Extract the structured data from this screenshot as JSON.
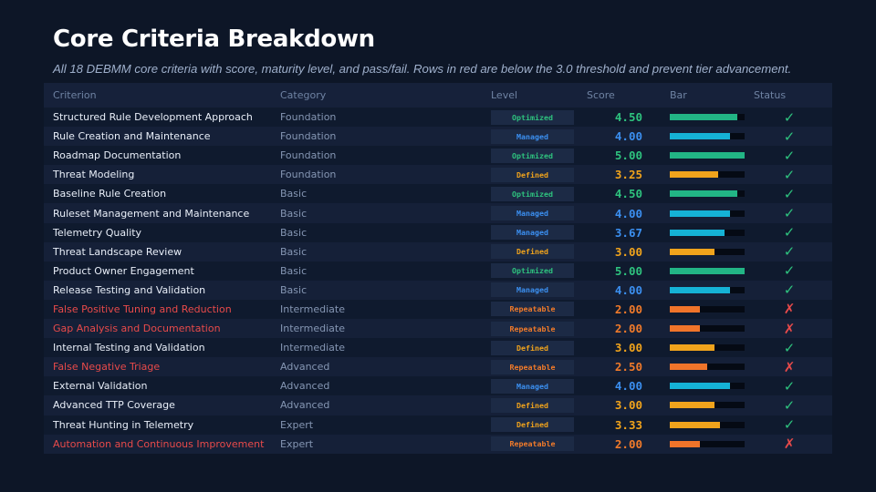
{
  "title": "Core Criteria Breakdown",
  "subtitle": "All 18 DEBMM core criteria with score, maturity level, and pass/fail. Rows in red are below the 3.0 threshold and prevent tier advancement.",
  "columns": {
    "criterion": "Criterion",
    "category": "Category",
    "level": "Level",
    "score": "Score",
    "bar": "Bar",
    "status": "Status"
  },
  "level_colors": {
    "Optimized": "#2ec27e",
    "Managed": "#3b8ff0",
    "Defined": "#f0a31c",
    "Repeatable": "#f07a2a"
  },
  "bar_colors": {
    "Optimized": "#22b585",
    "Managed": "#15b2d6",
    "Defined": "#f0a31c",
    "Repeatable": "#f0742a"
  },
  "status_icons": {
    "pass": "check-icon",
    "fail": "cross-icon"
  },
  "score_max": 5,
  "rows": [
    {
      "criterion": "Structured Rule Development Approach",
      "category": "Foundation",
      "level": "Optimized",
      "score": "4.50",
      "status": "pass"
    },
    {
      "criterion": "Rule Creation and Maintenance",
      "category": "Foundation",
      "level": "Managed",
      "score": "4.00",
      "status": "pass"
    },
    {
      "criterion": "Roadmap Documentation",
      "category": "Foundation",
      "level": "Optimized",
      "score": "5.00",
      "status": "pass"
    },
    {
      "criterion": "Threat Modeling",
      "category": "Foundation",
      "level": "Defined",
      "score": "3.25",
      "status": "pass"
    },
    {
      "criterion": "Baseline Rule Creation",
      "category": "Basic",
      "level": "Optimized",
      "score": "4.50",
      "status": "pass"
    },
    {
      "criterion": "Ruleset Management and Maintenance",
      "category": "Basic",
      "level": "Managed",
      "score": "4.00",
      "status": "pass"
    },
    {
      "criterion": "Telemetry Quality",
      "category": "Basic",
      "level": "Managed",
      "score": "3.67",
      "status": "pass"
    },
    {
      "criterion": "Threat Landscape Review",
      "category": "Basic",
      "level": "Defined",
      "score": "3.00",
      "status": "pass"
    },
    {
      "criterion": "Product Owner Engagement",
      "category": "Basic",
      "level": "Optimized",
      "score": "5.00",
      "status": "pass"
    },
    {
      "criterion": "Release Testing and Validation",
      "category": "Basic",
      "level": "Managed",
      "score": "4.00",
      "status": "pass"
    },
    {
      "criterion": "False Positive Tuning and Reduction",
      "category": "Intermediate",
      "level": "Repeatable",
      "score": "2.00",
      "status": "fail"
    },
    {
      "criterion": "Gap Analysis and Documentation",
      "category": "Intermediate",
      "level": "Repeatable",
      "score": "2.00",
      "status": "fail"
    },
    {
      "criterion": "Internal Testing and Validation",
      "category": "Intermediate",
      "level": "Defined",
      "score": "3.00",
      "status": "pass"
    },
    {
      "criterion": "False Negative Triage",
      "category": "Advanced",
      "level": "Repeatable",
      "score": "2.50",
      "status": "fail"
    },
    {
      "criterion": "External Validation",
      "category": "Advanced",
      "level": "Managed",
      "score": "4.00",
      "status": "pass"
    },
    {
      "criterion": "Advanced TTP Coverage",
      "category": "Advanced",
      "level": "Defined",
      "score": "3.00",
      "status": "pass"
    },
    {
      "criterion": "Threat Hunting in Telemetry",
      "category": "Expert",
      "level": "Defined",
      "score": "3.33",
      "status": "pass"
    },
    {
      "criterion": "Automation and Continuous Improvement",
      "category": "Expert",
      "level": "Repeatable",
      "score": "2.00",
      "status": "fail"
    }
  ]
}
